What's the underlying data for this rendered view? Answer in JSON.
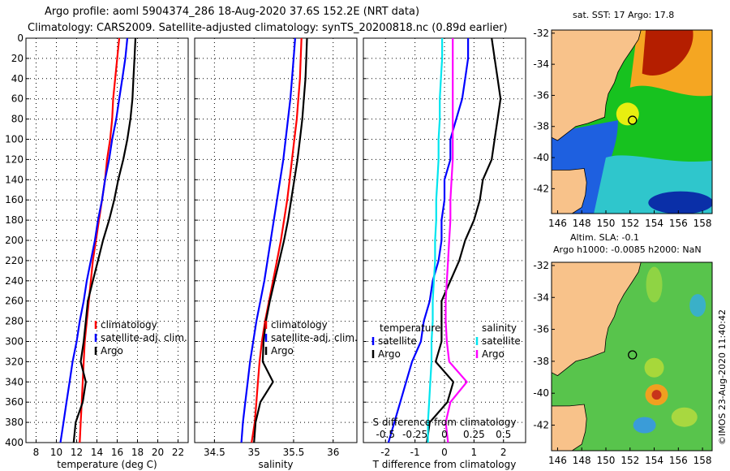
{
  "title": {
    "line1": "Argo profile: aoml 5904374_286 18-Aug-2020 37.6S 152.2E (NRT data)",
    "line2": "Climatology: CARS2009. Satellite-adjusted climatology: synTS_20200818.nc (0.89d earlier)"
  },
  "maps": {
    "sst_title": "sat. SST: 17 Argo: 17.8",
    "sla_title_line1": "Altim. SLA: -0.1",
    "sla_title_line2": "Argo h1000: -0.0085 h2000: NaN",
    "lat_ticks": [
      "-32",
      "-34",
      "-36",
      "-38",
      "-40",
      "-42"
    ],
    "lon_ticks": [
      "146",
      "148",
      "150",
      "152",
      "154",
      "156",
      "158"
    ],
    "float_position": {
      "lat": -37.6,
      "lon": 152.2
    }
  },
  "stamp": "©IMOS 23-Aug-2020 11:40:42",
  "colors": {
    "climatology": "#ff0000",
    "satellite": "#0000ff",
    "argo": "#000000",
    "sat_salinity": "#00e5ee",
    "argo_salinity": "#ff00ff"
  },
  "chart_data": [
    {
      "type": "line",
      "name": "temperature",
      "xlabel": "temperature (deg C)",
      "ylabel": "",
      "ylim": [
        0,
        400
      ],
      "xlim": [
        7,
        23
      ],
      "xticks": [
        8,
        10,
        12,
        14,
        16,
        18,
        20,
        22
      ],
      "yticks": [
        0,
        20,
        40,
        60,
        80,
        100,
        120,
        140,
        160,
        180,
        200,
        220,
        240,
        260,
        280,
        300,
        320,
        340,
        360,
        380,
        400
      ],
      "legend": [
        "climatology",
        "satellite-adj. clim.",
        "Argo"
      ],
      "depth": [
        0,
        20,
        40,
        60,
        80,
        100,
        120,
        140,
        160,
        180,
        200,
        220,
        240,
        260,
        280,
        300,
        320,
        340,
        360,
        380,
        400
      ],
      "series": [
        {
          "name": "climatology",
          "values": [
            16.2,
            16.0,
            15.8,
            15.6,
            15.5,
            15.3,
            15.0,
            14.8,
            14.5,
            14.2,
            13.9,
            13.6,
            13.4,
            13.2,
            13.0,
            12.8,
            12.7,
            12.6,
            12.5,
            12.4,
            12.3
          ]
        },
        {
          "name": "satellite-adj. clim.",
          "values": [
            17.0,
            16.8,
            16.5,
            16.2,
            15.9,
            15.5,
            15.2,
            14.8,
            14.5,
            14.1,
            13.8,
            13.4,
            13.0,
            12.7,
            12.3,
            12.0,
            11.6,
            11.3,
            11.0,
            10.7,
            10.4
          ]
        },
        {
          "name": "Argo",
          "values": [
            17.8,
            17.7,
            17.6,
            17.5,
            17.3,
            17.0,
            16.6,
            16.1,
            15.7,
            15.2,
            14.6,
            14.1,
            13.6,
            13.1,
            12.9,
            12.7,
            12.4,
            12.9,
            12.6,
            11.9,
            11.7
          ]
        }
      ]
    },
    {
      "type": "line",
      "name": "salinity",
      "xlabel": "salinity",
      "ylim": [
        0,
        400
      ],
      "xlim": [
        34.25,
        36.3
      ],
      "xticks": [
        34.5,
        35,
        35.5,
        36
      ],
      "xticklabels": [
        "34.5",
        "35",
        "35.5",
        "36"
      ],
      "legend": [
        "climatology",
        "satellite-adj. clim.",
        "Argo"
      ],
      "depth": [
        0,
        20,
        40,
        60,
        80,
        100,
        120,
        140,
        160,
        180,
        200,
        220,
        240,
        260,
        280,
        300,
        320,
        340,
        360,
        380,
        400
      ],
      "series": [
        {
          "name": "climatology",
          "values": [
            35.6,
            35.59,
            35.58,
            35.56,
            35.54,
            35.51,
            35.48,
            35.45,
            35.42,
            35.38,
            35.34,
            35.29,
            35.24,
            35.19,
            35.14,
            35.1,
            35.07,
            35.05,
            35.03,
            35.01,
            34.97
          ]
        },
        {
          "name": "satellite-adj. clim.",
          "values": [
            35.52,
            35.5,
            35.48,
            35.46,
            35.43,
            35.4,
            35.37,
            35.33,
            35.29,
            35.25,
            35.21,
            35.17,
            35.13,
            35.08,
            35.03,
            34.99,
            34.95,
            34.92,
            34.89,
            34.86,
            34.84
          ]
        },
        {
          "name": "Argo",
          "values": [
            35.67,
            35.66,
            35.65,
            35.63,
            35.61,
            35.58,
            35.55,
            35.51,
            35.47,
            35.43,
            35.38,
            35.32,
            35.26,
            35.2,
            35.15,
            35.12,
            35.11,
            35.24,
            35.08,
            35.02,
            35.0
          ]
        }
      ]
    },
    {
      "type": "line",
      "name": "difference",
      "xlabel": "T difference from climatology",
      "top_xlabel": "S difference from climatology",
      "ylim": [
        0,
        400
      ],
      "xlim": [
        -2.75,
        2.75
      ],
      "xticks": [
        -2,
        -1,
        0,
        1,
        2
      ],
      "xticklabels": [
        "-2",
        "-1",
        "0",
        "1",
        "2"
      ],
      "top_xticks": [
        -0.5,
        -0.25,
        0,
        0.25,
        0.5
      ],
      "top_xticklabels": [
        "-0.5",
        "-0.25",
        "0",
        "0.25",
        "0.5"
      ],
      "top_xlim": [
        -0.6875,
        0.6875
      ],
      "legend_temperature": {
        "title": "temperature",
        "items": [
          "satellite",
          "Argo"
        ]
      },
      "legend_salinity": {
        "title": "salinity",
        "items": [
          "satellite",
          "Argo"
        ]
      },
      "depth": [
        0,
        20,
        40,
        60,
        80,
        100,
        120,
        140,
        160,
        180,
        200,
        220,
        240,
        260,
        280,
        300,
        320,
        340,
        360,
        380,
        400
      ],
      "series": [
        {
          "name": "satellite T diff",
          "axis": "T",
          "values": [
            0.8,
            0.8,
            0.7,
            0.6,
            0.4,
            0.2,
            0.2,
            0.0,
            0.0,
            -0.1,
            -0.1,
            -0.2,
            -0.4,
            -0.5,
            -0.7,
            -0.8,
            -1.1,
            -1.3,
            -1.5,
            -1.7,
            -1.9
          ]
        },
        {
          "name": "Argo T diff",
          "axis": "T",
          "values": [
            1.6,
            1.7,
            1.8,
            1.9,
            1.8,
            1.7,
            1.6,
            1.3,
            1.2,
            1.0,
            0.7,
            0.5,
            0.2,
            -0.1,
            -0.1,
            -0.1,
            -0.3,
            0.3,
            0.1,
            -0.5,
            -0.6
          ]
        },
        {
          "name": "satellite S diff",
          "axis": "S",
          "values": [
            -0.02,
            -0.02,
            -0.03,
            -0.04,
            -0.04,
            -0.05,
            -0.05,
            -0.06,
            -0.07,
            -0.07,
            -0.08,
            -0.08,
            -0.09,
            -0.1,
            -0.1,
            -0.11,
            -0.11,
            -0.12,
            -0.13,
            -0.14,
            -0.14
          ]
        },
        {
          "name": "Argo S diff",
          "axis": "S",
          "values": [
            0.07,
            0.07,
            0.07,
            0.07,
            0.07,
            0.07,
            0.07,
            0.06,
            0.05,
            0.05,
            0.04,
            0.03,
            0.02,
            0.01,
            0.01,
            0.02,
            0.04,
            0.19,
            0.05,
            0.01,
            0.03
          ]
        }
      ]
    }
  ]
}
